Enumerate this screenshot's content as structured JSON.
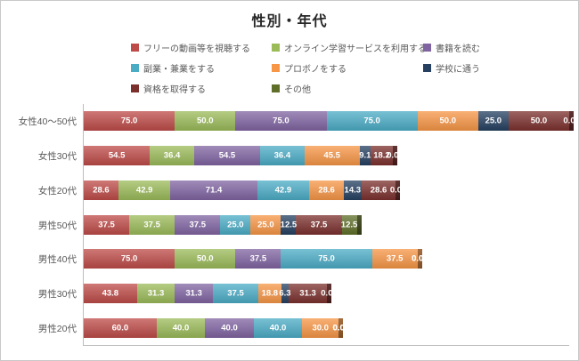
{
  "chart_data": {
    "type": "bar",
    "orientation": "horizontal",
    "stacked": true,
    "title": "性別・年代",
    "legend_position": "top",
    "grid": false,
    "xlim": [
      0,
      400
    ],
    "value_label_format": "one_decimal",
    "categories": [
      "女性40～50代",
      "女性30代",
      "女性20代",
      "男性50代",
      "男性40代",
      "男性30代",
      "男性20代"
    ],
    "series": [
      {
        "name": "フリーの動画等を視聴する",
        "color": "#BE4B48",
        "values": [
          75.0,
          54.5,
          28.6,
          37.5,
          75.0,
          43.8,
          60.0
        ]
      },
      {
        "name": "オンライン学習サービスを利用する",
        "color": "#9BBB59",
        "values": [
          50.0,
          36.4,
          42.9,
          37.5,
          50.0,
          31.3,
          40.0
        ]
      },
      {
        "name": "書籍を読む",
        "color": "#8064A2",
        "values": [
          75.0,
          54.5,
          71.4,
          37.5,
          37.5,
          31.3,
          40.0
        ]
      },
      {
        "name": "副業・兼業をする",
        "color": "#4BACC6",
        "values": [
          75.0,
          36.4,
          42.9,
          25.0,
          75.0,
          37.5,
          40.0
        ]
      },
      {
        "name": "プロボノをする",
        "color": "#F79646",
        "values": [
          50.0,
          45.5,
          28.6,
          25.0,
          37.5,
          18.8,
          30.0
        ]
      },
      {
        "name": "学校に通う",
        "color": "#254061",
        "values": [
          25.0,
          9.1,
          14.3,
          12.5,
          0.0,
          6.3,
          0.0
        ]
      },
      {
        "name": "資格を取得する",
        "color": "#7B302D",
        "values": [
          50.0,
          18.2,
          28.6,
          37.5,
          0.0,
          31.3,
          0.0
        ]
      },
      {
        "name": "その他",
        "color": "#5F6F29",
        "values": [
          0.0,
          0.0,
          0.0,
          12.5,
          0.0,
          0.0,
          0.0
        ]
      }
    ]
  }
}
